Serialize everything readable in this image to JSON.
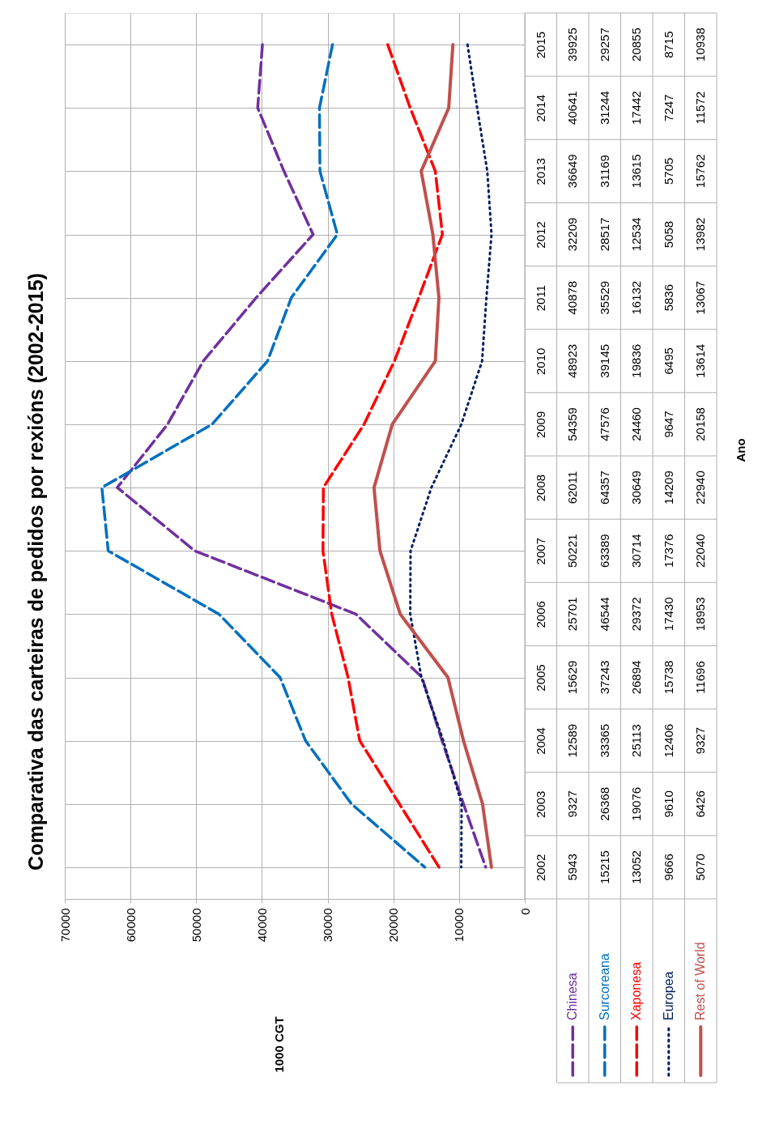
{
  "chart_data": {
    "type": "line",
    "orientation": "horizontal",
    "title": "Comparativa das carteiras de pedidos por rexións (2002-2015)",
    "annotations": [
      "1000 CGT",
      "Ano"
    ],
    "categories": [
      "2015",
      "2014",
      "2013",
      "2012",
      "2011",
      "2010",
      "2009",
      "2008",
      "2007",
      "2006",
      "2005",
      "2004",
      "2003",
      "2002"
    ],
    "series": [
      {
        "name": "Chinesa",
        "color": "#7030a0",
        "line_style": "dashed",
        "values": [
          39925,
          40641,
          36649,
          32209,
          40878,
          48923,
          54359,
          62011,
          50221,
          25701,
          15629,
          12589,
          9327,
          5943
        ]
      },
      {
        "name": "Surcoreana",
        "color": "#0070c0",
        "line_style": "dashed",
        "values": [
          29257,
          31244,
          31169,
          28517,
          35529,
          39145,
          47576,
          64357,
          63389,
          46544,
          37243,
          33365,
          26368,
          15215
        ]
      },
      {
        "name": "Xaponesa",
        "color": "#ff0000",
        "line_style": "dashed",
        "values": [
          20855,
          17442,
          13615,
          12534,
          16132,
          19836,
          24460,
          30649,
          30714,
          29372,
          26894,
          25113,
          19076,
          13052
        ]
      },
      {
        "name": "Europea",
        "color": "#002060",
        "line_style": "dotted",
        "values": [
          8715,
          7247,
          5705,
          5058,
          5836,
          6495,
          9647,
          14209,
          17376,
          17430,
          15738,
          12406,
          9610,
          9666
        ]
      },
      {
        "name": "Rest of World",
        "color": "#c0504d",
        "line_style": "solid",
        "values": [
          10938,
          11572,
          15762,
          13982,
          13067,
          13614,
          20158,
          22940,
          22040,
          18953,
          11696,
          9327,
          6426,
          5070
        ]
      }
    ],
    "xlim": [
      70000,
      0
    ],
    "xticks": [
      70000,
      60000,
      50000,
      40000,
      30000,
      20000,
      10000,
      0
    ],
    "grid": true,
    "legend": "bottom",
    "data_labels": true
  }
}
